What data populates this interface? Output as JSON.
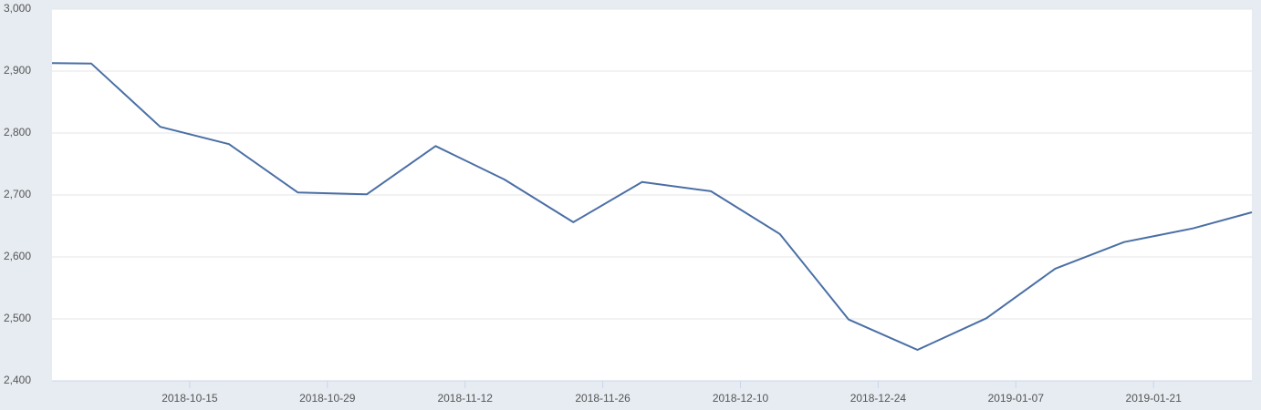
{
  "chart_data": {
    "type": "line",
    "x": [
      "2018-10-01",
      "2018-10-05",
      "2018-10-12",
      "2018-10-19",
      "2018-10-26",
      "2018-11-02",
      "2018-11-09",
      "2018-11-16",
      "2018-11-23",
      "2018-11-30",
      "2018-12-07",
      "2018-12-14",
      "2018-12-21",
      "2018-12-28",
      "2019-01-04",
      "2019-01-11",
      "2019-01-18",
      "2019-01-25",
      "2019-01-31"
    ],
    "series": [
      {
        "color": "#4a6fa5",
        "values": [
          2913,
          2912,
          2810,
          2782,
          2704,
          2701,
          2779,
          2725,
          2656,
          2721,
          2706,
          2637,
          2499,
          2450,
          2501,
          2581,
          2624,
          2646,
          2672
        ]
      }
    ],
    "xlim": [
      "2018-10-01",
      "2019-01-31"
    ],
    "xticks": [
      "2018-10-15",
      "2018-10-29",
      "2018-11-12",
      "2018-11-26",
      "2018-12-10",
      "2018-12-24",
      "2019-01-07",
      "2019-01-21"
    ],
    "ylim": [
      2400,
      3000
    ],
    "yticks": [
      {
        "value": 2400,
        "label": "2,400"
      },
      {
        "value": 2500,
        "label": "2,500"
      },
      {
        "value": 2600,
        "label": "2,600"
      },
      {
        "value": 2700,
        "label": "2,700"
      },
      {
        "value": 2800,
        "label": "2,800"
      },
      {
        "value": 2900,
        "label": "2,900"
      },
      {
        "value": 3000,
        "label": "3,000"
      }
    ],
    "grid": true
  }
}
